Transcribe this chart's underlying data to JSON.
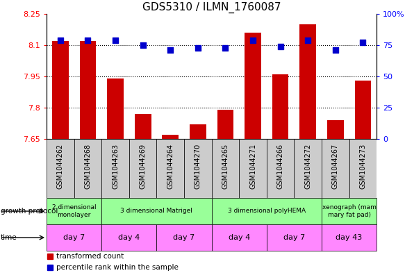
{
  "title": "GDS5310 / ILMN_1760087",
  "samples": [
    "GSM1044262",
    "GSM1044268",
    "GSM1044263",
    "GSM1044269",
    "GSM1044264",
    "GSM1044270",
    "GSM1044265",
    "GSM1044271",
    "GSM1044266",
    "GSM1044272",
    "GSM1044267",
    "GSM1044273"
  ],
  "red_values": [
    8.12,
    8.12,
    7.94,
    7.77,
    7.67,
    7.72,
    7.79,
    8.16,
    7.96,
    8.2,
    7.74,
    7.93
  ],
  "blue_values": [
    79,
    79,
    79,
    75,
    71,
    73,
    73,
    79,
    74,
    79,
    71,
    77
  ],
  "ylim_left": [
    7.65,
    8.25
  ],
  "ylim_right": [
    0,
    100
  ],
  "yticks_left": [
    7.65,
    7.8,
    7.95,
    8.1,
    8.25
  ],
  "yticks_right": [
    0,
    25,
    50,
    75,
    100
  ],
  "ytick_labels_right": [
    "0",
    "25",
    "50",
    "75",
    "100%"
  ],
  "ytick_labels_left": [
    "7.65",
    "7.8",
    "7.95",
    "8.1",
    "8.25"
  ],
  "hlines": [
    7.8,
    7.95,
    8.1
  ],
  "bar_bottom": 7.65,
  "bar_color": "#cc0000",
  "dot_color": "#0000cc",
  "growth_protocol_groups": [
    {
      "label": "2 dimensional\nmonolayer",
      "start": 0,
      "end": 2,
      "color": "#99ff99"
    },
    {
      "label": "3 dimensional Matrigel",
      "start": 2,
      "end": 6,
      "color": "#99ff99"
    },
    {
      "label": "3 dimensional polyHEMA",
      "start": 6,
      "end": 10,
      "color": "#99ff99"
    },
    {
      "label": "xenograph (mam\nmary fat pad)",
      "start": 10,
      "end": 12,
      "color": "#99ff99"
    }
  ],
  "time_groups": [
    {
      "label": "day 7",
      "start": 0,
      "end": 2,
      "color": "#ff88ff"
    },
    {
      "label": "day 4",
      "start": 2,
      "end": 4,
      "color": "#ff88ff"
    },
    {
      "label": "day 7",
      "start": 4,
      "end": 6,
      "color": "#ff88ff"
    },
    {
      "label": "day 4",
      "start": 6,
      "end": 8,
      "color": "#ff88ff"
    },
    {
      "label": "day 7",
      "start": 8,
      "end": 10,
      "color": "#ff88ff"
    },
    {
      "label": "day 43",
      "start": 10,
      "end": 12,
      "color": "#ff88ff"
    }
  ],
  "legend_red": "transformed count",
  "legend_blue": "percentile rank within the sample",
  "growth_protocol_label": "growth protocol",
  "time_label": "time",
  "bar_width": 0.6,
  "dot_size": 28,
  "sample_box_color": "#cccccc",
  "fig_width": 5.83,
  "fig_height": 3.93,
  "fig_dpi": 100
}
